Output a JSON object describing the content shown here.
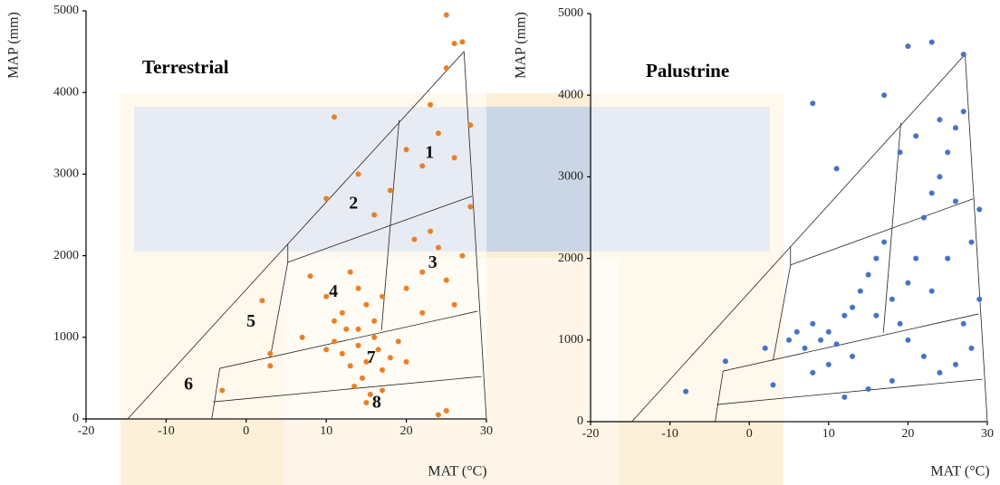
{
  "chart_data": [
    {
      "type": "scatter",
      "title": "Terrestrial",
      "x_label": "MAT (°C)",
      "y_label": "MAP (mm)",
      "xlim": [
        -20,
        30
      ],
      "ylim": [
        0,
        5000
      ],
      "xticks": [
        -20,
        -10,
        0,
        10,
        20,
        30
      ],
      "yticks": [
        0,
        1000,
        2000,
        3000,
        4000,
        5000
      ],
      "series": [
        {
          "color": "#e87f27",
          "x": [
            12,
            13,
            14,
            15,
            16,
            17,
            11,
            12.5,
            14.5,
            16.5,
            18,
            13.5,
            15.5,
            19,
            20,
            10,
            10,
            12,
            14,
            13,
            15,
            16,
            11,
            14,
            8,
            17,
            20,
            22,
            24,
            23,
            25,
            27,
            21,
            26,
            28,
            22,
            10,
            14,
            16,
            18,
            11,
            20,
            22,
            24,
            26,
            28,
            23,
            25,
            26,
            25,
            27,
            15,
            17,
            24,
            25,
            -3,
            3,
            7,
            2,
            3
          ],
          "values": [
            800,
            650,
            900,
            700,
            1000,
            600,
            950,
            1100,
            500,
            850,
            750,
            400,
            300,
            950,
            700,
            850,
            1500,
            1300,
            1600,
            1800,
            1400,
            1200,
            1200,
            1100,
            1750,
            1500,
            1600,
            1800,
            2100,
            2300,
            1700,
            2000,
            2200,
            1400,
            2600,
            1300,
            2700,
            3000,
            2500,
            2800,
            3700,
            3300,
            3100,
            3500,
            3200,
            3600,
            3850,
            4300,
            4600,
            4950,
            4620,
            200,
            350,
            50,
            100,
            350,
            800,
            1000,
            1450,
            650
          ]
        }
      ],
      "boundaries": [
        {
          "x": [
            -14.8,
            27.2,
            30,
            -14.8
          ],
          "y": [
            0,
            4500,
            0,
            0
          ]
        },
        {
          "x": [
            -4.3,
            -3.3,
            28.9
          ],
          "y": [
            0,
            620,
            1320
          ]
        },
        {
          "x": [
            -4.1,
            29.4
          ],
          "y": [
            210,
            520
          ]
        },
        {
          "x": [
            3,
            5.2,
            5.2
          ],
          "y": [
            750,
            1920,
            2140
          ]
        },
        {
          "x": [
            5.2,
            28.2
          ],
          "y": [
            1920,
            2730
          ]
        },
        {
          "x": [
            19.1,
            16.9
          ],
          "y": [
            3660,
            1090
          ]
        }
      ],
      "annotations": [
        {
          "text": "1",
          "x": 22.9,
          "y": 3250
        },
        {
          "text": "2",
          "x": 13.4,
          "y": 2630
        },
        {
          "text": "3",
          "x": 23.3,
          "y": 1900
        },
        {
          "text": "4",
          "x": 10.9,
          "y": 1550
        },
        {
          "text": "5",
          "x": 0.6,
          "y": 1180
        },
        {
          "text": "6",
          "x": -7.2,
          "y": 410
        },
        {
          "text": "7",
          "x": 15.6,
          "y": 740
        },
        {
          "text": "8",
          "x": 16.3,
          "y": 190
        }
      ]
    },
    {
      "type": "scatter",
      "title": "Palustrine",
      "x_label": "MAT (°C)",
      "y_label": "MAP (mm)",
      "xlim": [
        -20,
        30
      ],
      "ylim": [
        0,
        5000
      ],
      "xticks": [
        -20,
        -10,
        0,
        10,
        20,
        30
      ],
      "yticks": [
        0,
        1000,
        2000,
        3000,
        4000,
        5000
      ],
      "series": [
        {
          "color": "#4472c4",
          "x": [
            5,
            6,
            7,
            8,
            9,
            10,
            11,
            12,
            13,
            14,
            15,
            16,
            17,
            18,
            19,
            20,
            21,
            22,
            23,
            24,
            25,
            26,
            27,
            28,
            29,
            28,
            26,
            24,
            22,
            20,
            18,
            15,
            12,
            10,
            8,
            13,
            16,
            25,
            27,
            23,
            21,
            19,
            20,
            23,
            27,
            8,
            11,
            17,
            -8,
            -3,
            2,
            3,
            26,
            24,
            29
          ],
          "values": [
            1000,
            1100,
            900,
            1200,
            1000,
            1100,
            950,
            1300,
            1400,
            1600,
            1800,
            2000,
            2200,
            1500,
            1200,
            1700,
            2000,
            2500,
            2800,
            3000,
            3300,
            3600,
            3800,
            2200,
            1500,
            900,
            700,
            600,
            800,
            1000,
            500,
            400,
            300,
            700,
            600,
            800,
            1300,
            2000,
            1200,
            1600,
            3500,
            3300,
            4600,
            4650,
            4500,
            3900,
            3100,
            4000,
            370,
            740,
            900,
            450,
            2700,
            3700,
            2600
          ]
        }
      ],
      "boundaries": [
        {
          "x": [
            -14.8,
            27.2,
            30,
            -14.8
          ],
          "y": [
            0,
            4500,
            0,
            0
          ]
        },
        {
          "x": [
            -4.3,
            -3.3,
            28.9
          ],
          "y": [
            0,
            620,
            1320
          ]
        },
        {
          "x": [
            -4.1,
            29.4
          ],
          "y": [
            210,
            520
          ]
        },
        {
          "x": [
            3,
            5.2,
            5.2
          ],
          "y": [
            750,
            1920,
            2140
          ]
        },
        {
          "x": [
            5.2,
            28.2
          ],
          "y": [
            1920,
            2730
          ]
        },
        {
          "x": [
            19.1,
            16.9
          ],
          "y": [
            3660,
            1090
          ]
        }
      ]
    }
  ]
}
